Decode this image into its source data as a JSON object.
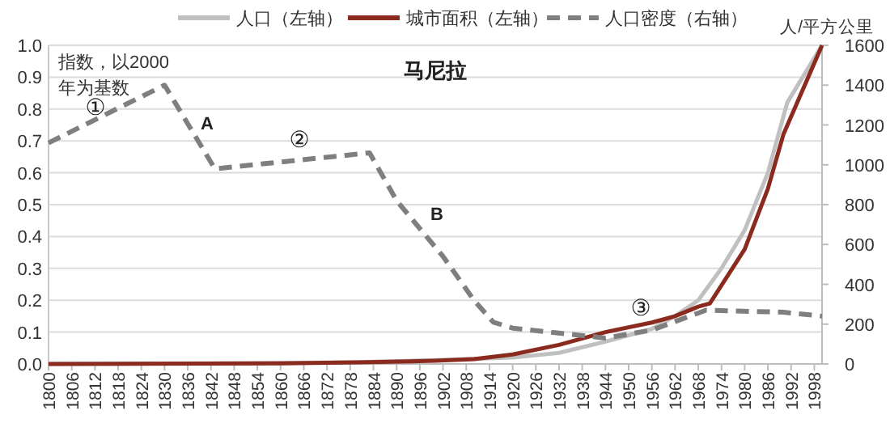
{
  "chart_data": {
    "type": "line",
    "title": "马尼拉",
    "ylabel": "指数，以2000年为基数",
    "y2label": "人/平方公里",
    "xlim": [
      1800,
      2000
    ],
    "xticks": [
      1800,
      1806,
      1812,
      1818,
      1824,
      1830,
      1836,
      1842,
      1848,
      1854,
      1860,
      1866,
      1872,
      1878,
      1884,
      1890,
      1896,
      1902,
      1908,
      1914,
      1920,
      1926,
      1932,
      1938,
      1944,
      1950,
      1956,
      1962,
      1968,
      1974,
      1980,
      1986,
      1992,
      1998
    ],
    "ylim": [
      0,
      1
    ],
    "yticks": [
      {
        "value": 0,
        "label": "0.0"
      },
      0.1,
      0.2,
      0.3,
      0.4,
      0.5,
      0.6,
      0.7,
      0.8,
      0.9,
      {
        "value": 1,
        "label": "1.0"
      }
    ],
    "y2lim": [
      0,
      1600
    ],
    "y2ticks": [
      0,
      200,
      400,
      600,
      800,
      1000,
      1200,
      1400,
      1600
    ],
    "grid": "y",
    "legend": "top",
    "series": [
      {
        "name": "人口（左轴）",
        "color": "#c0c0c0",
        "line_style": "solid",
        "x": [
          1800,
          1860,
          1880,
          1900,
          1920,
          1932,
          1944,
          1956,
          1962,
          1968,
          1974,
          1980,
          1986,
          1991,
          1995,
          2000
        ],
        "values": [
          0,
          0.003,
          0.006,
          0.012,
          0.02,
          0.035,
          0.07,
          0.11,
          0.15,
          0.2,
          0.3,
          0.42,
          0.6,
          0.82,
          0.9,
          1.0
        ]
      },
      {
        "name": "城市面积（左轴）",
        "color": "#8b2a1e",
        "line_style": "solid",
        "x": [
          1800,
          1860,
          1880,
          1900,
          1910,
          1920,
          1932,
          1944,
          1956,
          1962,
          1968,
          1971,
          1980,
          1986,
          1990,
          2000
        ],
        "values": [
          0,
          0.002,
          0.005,
          0.01,
          0.015,
          0.03,
          0.06,
          0.1,
          0.13,
          0.15,
          0.18,
          0.19,
          0.36,
          0.55,
          0.72,
          1.0
        ]
      },
      {
        "name": "人口密度（右轴）",
        "color": "#7f7f7f",
        "line_style": "dashed",
        "axis": "y2",
        "x": [
          1800,
          1830,
          1843,
          1883,
          1890,
          1902,
          1910,
          1915,
          1920,
          1944,
          1956,
          1970,
          1990,
          2000
        ],
        "values": [
          1110,
          1400,
          980,
          1060,
          820,
          540,
          320,
          210,
          180,
          130,
          170,
          270,
          260,
          240
        ]
      }
    ],
    "annotations": [
      "①",
      "A",
      "②",
      "B",
      "③"
    ]
  }
}
